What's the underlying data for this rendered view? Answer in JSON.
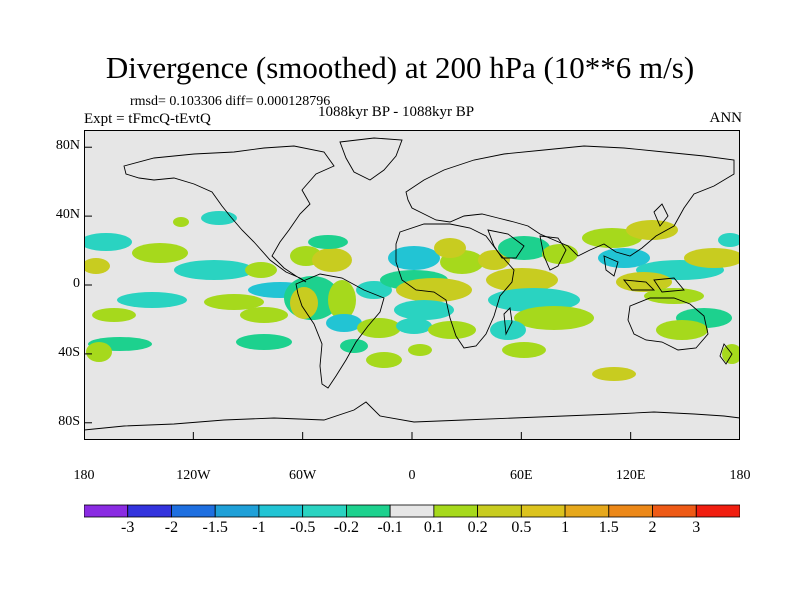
{
  "title": "Divergence (smoothed) at 200 hPa (10**6 m/s)",
  "stats": "rmsd= 0.103306 diff= 0.000128796",
  "experiment": "Expt = tFmcQ-tEvtQ",
  "period": "1088kyr BP - 1088kyr BP",
  "season": "ANN",
  "map": {
    "projection": "cylindrical equidistant",
    "lon_range": [
      -180,
      180
    ],
    "lat_range": [
      -90,
      90
    ],
    "background": "#e6e6e6",
    "y_ticks": [
      {
        "label": "80N",
        "lat": 80
      },
      {
        "label": "40N",
        "lat": 40
      },
      {
        "label": "0",
        "lat": 0
      },
      {
        "label": "40S",
        "lat": -40
      },
      {
        "label": "80S",
        "lat": -80
      }
    ],
    "x_ticks": [
      {
        "label": "180",
        "lon": -180
      },
      {
        "label": "120W",
        "lon": -120
      },
      {
        "label": "60W",
        "lon": -60
      },
      {
        "label": "0",
        "lon": 0
      },
      {
        "label": "60E",
        "lon": 60
      },
      {
        "label": "120E",
        "lon": 120
      },
      {
        "label": "180",
        "lon": 180
      }
    ]
  },
  "colorbar": {
    "colors": [
      "#8a2be2",
      "#3333dd",
      "#1e6fe0",
      "#1fa0d8",
      "#22c4d4",
      "#2ad3c1",
      "#1dd18e",
      "#e6e6e6",
      "#a6d91c",
      "#c8cc20",
      "#dcc31e",
      "#e6a81c",
      "#ec8818",
      "#ee5a16",
      "#f01e10"
    ],
    "labels": [
      "-3",
      "-2",
      "-1.5",
      "-1",
      "-0.5",
      "-0.2",
      "-0.1",
      "0.1",
      "0.2",
      "0.5",
      "1",
      "1.5",
      "2",
      "3"
    ]
  }
}
